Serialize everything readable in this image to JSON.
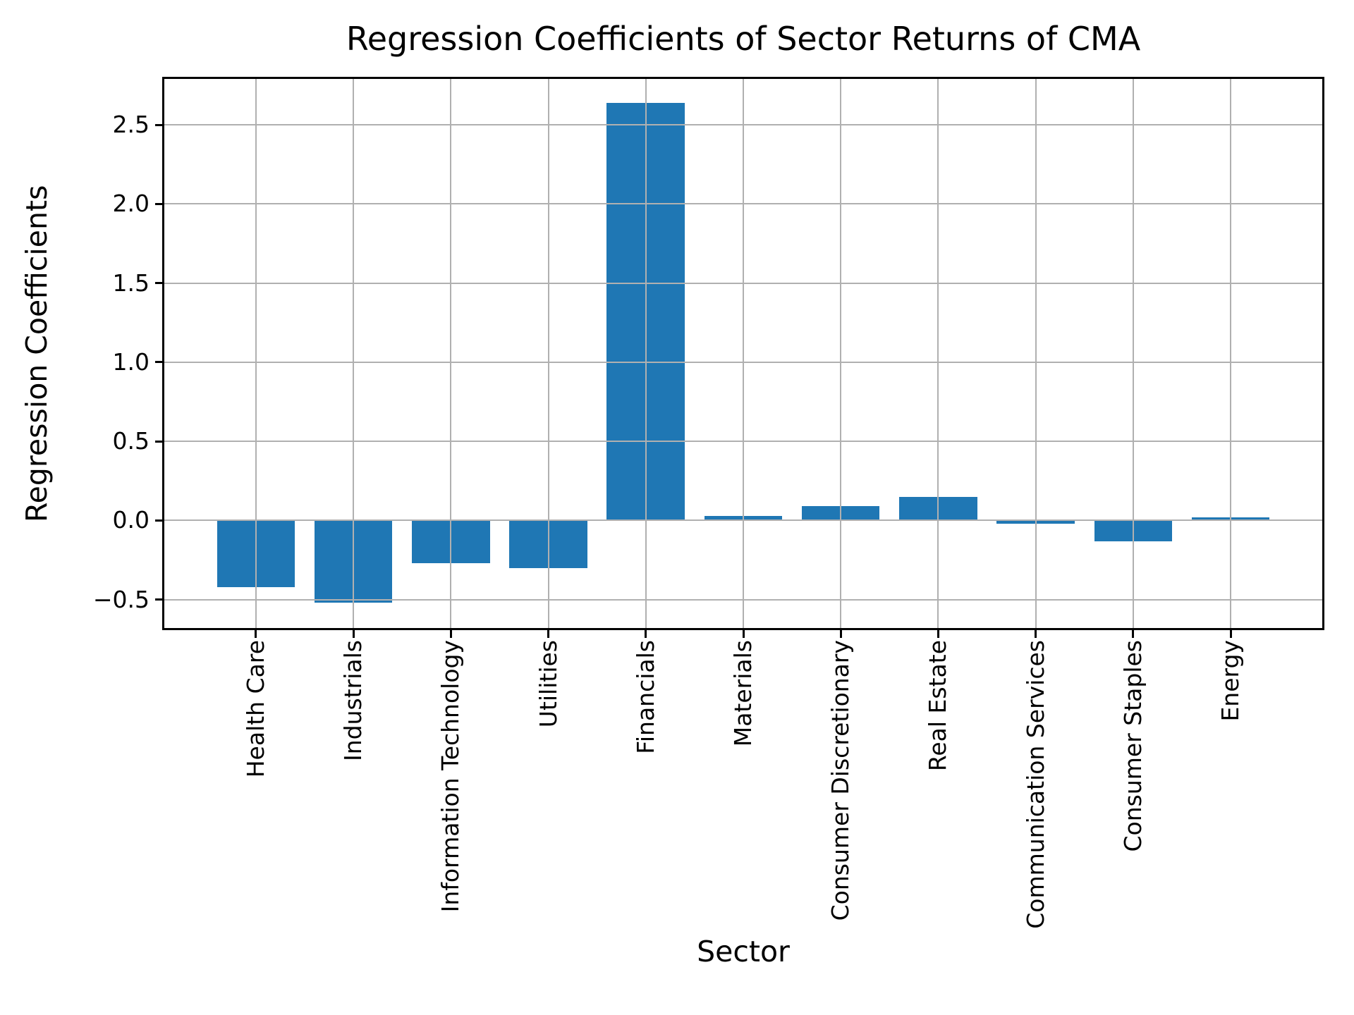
{
  "chart_data": {
    "type": "bar",
    "title": "Regression Coefficients of Sector Returns of CMA",
    "xlabel": "Sector",
    "ylabel": "Regression Coefficients",
    "categories": [
      "Health Care",
      "Industrials",
      "Information Technology",
      "Utilities",
      "Financials",
      "Materials",
      "Consumer Discretionary",
      "Real Estate",
      "Communication Services",
      "Consumer Staples",
      "Energy"
    ],
    "values": [
      -0.42,
      -0.52,
      -0.27,
      -0.3,
      2.64,
      0.03,
      0.09,
      0.15,
      -0.02,
      -0.13,
      0.02
    ],
    "yticks": [
      2.5,
      2.0,
      1.5,
      1.0,
      0.5,
      0.0,
      -0.5
    ],
    "ytick_labels": [
      "2.5",
      "2.0",
      "1.5",
      "1.0",
      "0.5",
      "0.0",
      "−0.5"
    ],
    "ylim": [
      -0.68,
      2.79
    ],
    "xlim": [
      -0.94,
      10.94
    ],
    "bar_width": 0.8,
    "x_tick_rotation_deg": 90,
    "grid": "on",
    "legend": "none",
    "colors": {
      "bar": "#1f77b4",
      "grid": "#b0b0b0",
      "spine": "#000000",
      "text": "#000000",
      "background": "#ffffff"
    }
  }
}
